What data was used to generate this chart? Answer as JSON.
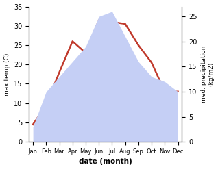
{
  "months": [
    "Jan",
    "Feb",
    "Mar",
    "Apr",
    "May",
    "Jun",
    "Jul",
    "Aug",
    "Sep",
    "Oct",
    "Nov",
    "Dec"
  ],
  "max_temp": [
    4.5,
    9.5,
    18.0,
    26.0,
    23.0,
    31.5,
    31.0,
    30.5,
    25.0,
    20.5,
    13.0,
    13.0
  ],
  "precipitation": [
    3.0,
    10.0,
    13.0,
    16.0,
    19.0,
    25.0,
    26.0,
    21.0,
    16.0,
    13.0,
    12.0,
    10.0
  ],
  "temp_color": "#c0392b",
  "precip_fill_color": "#c5cff5",
  "ylim_temp": [
    0,
    35
  ],
  "ylim_precip": [
    0,
    27
  ],
  "ylabel_left": "max temp (C)",
  "ylabel_right": "med. precipitation\n(kg/m2)",
  "xlabel": "date (month)",
  "temp_yticks": [
    0,
    5,
    10,
    15,
    20,
    25,
    30,
    35
  ],
  "precip_yticks": [
    0,
    5,
    10,
    15,
    20,
    25
  ],
  "background_color": "#ffffff"
}
